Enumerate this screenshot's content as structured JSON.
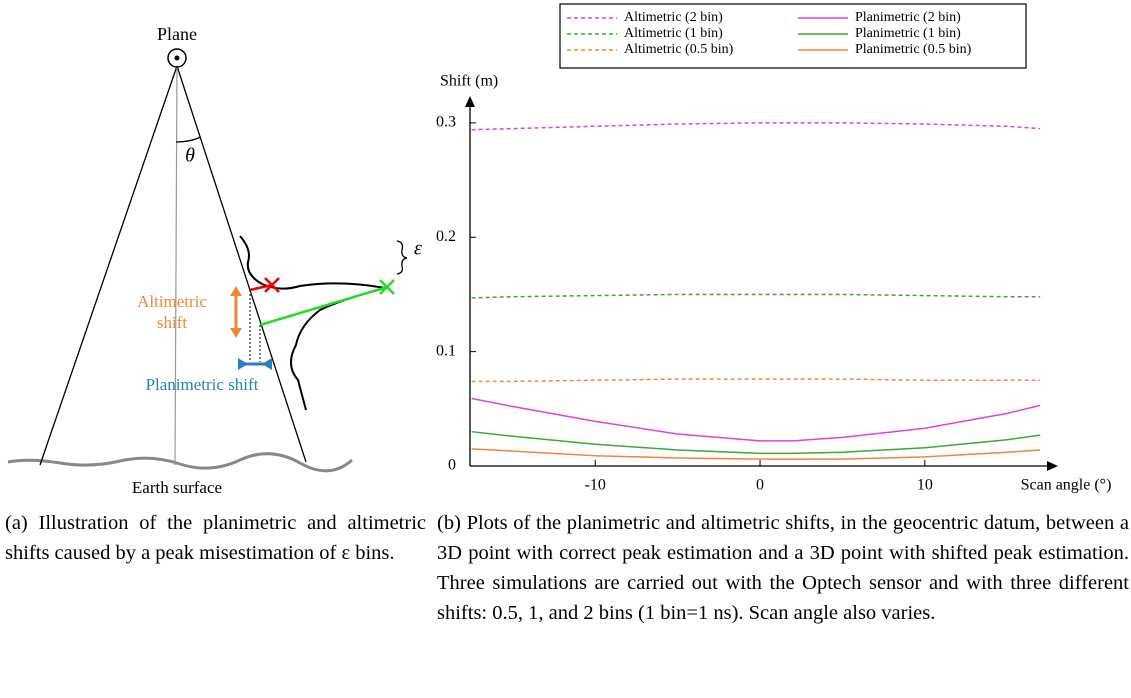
{
  "diagram": {
    "plane": "Plane",
    "theta": "θ",
    "epsilon": "ε",
    "altimetric_shift": [
      "Altimetric",
      "shift"
    ],
    "planimetric_shift": "Planimetric shift",
    "earth_surface": "Earth surface"
  },
  "captions": [
    "(a) Illustration of the planimetric and altimetric shifts caused by a peak misestimation of ε bins.",
    "(b) Plots of the planimetric and altimetric shifts, in the geocentric datum, between a 3D point with correct peak estimation and a 3D point with shifted peak estimation. Three simulations are carried out with the Optech sensor and with three different shifts: 0.5, 1, and 2 bins (1 bin=1 ns). Scan angle also varies."
  ],
  "chart_data": {
    "type": "line",
    "y_label": "Shift (m)",
    "x_label": "Scan angle (°)",
    "x": [
      -17.5,
      -15,
      -10,
      -5,
      0,
      2,
      5,
      10,
      15,
      17
    ],
    "series": [
      {
        "name": "Altimetric (2 bin)",
        "color": "#e23ee2",
        "dashed": true,
        "values": [
          0.294,
          0.295,
          0.297,
          0.299,
          0.3,
          0.3,
          0.3,
          0.299,
          0.297,
          0.295
        ]
      },
      {
        "name": "Altimetric (1 bin)",
        "color": "#3aa83a",
        "dashed": true,
        "values": [
          0.147,
          0.148,
          0.149,
          0.15,
          0.15,
          0.15,
          0.15,
          0.149,
          0.148,
          0.148
        ]
      },
      {
        "name": "Altimetric (0.5 bin)",
        "color": "#f0873c",
        "dashed": true,
        "values": [
          0.074,
          0.074,
          0.075,
          0.076,
          0.076,
          0.076,
          0.076,
          0.075,
          0.075,
          0.075
        ]
      },
      {
        "name": "Planimetric (2 bin)",
        "color": "#e23ee2",
        "dashed": false,
        "values": [
          0.059,
          0.052,
          0.039,
          0.028,
          0.022,
          0.022,
          0.025,
          0.033,
          0.046,
          0.053
        ]
      },
      {
        "name": "Planimetric (1 bin)",
        "color": "#3aa83a",
        "dashed": false,
        "values": [
          0.03,
          0.026,
          0.019,
          0.014,
          0.011,
          0.011,
          0.012,
          0.016,
          0.023,
          0.027
        ]
      },
      {
        "name": "Planimetric (0.5 bin)",
        "color": "#f0873c",
        "dashed": false,
        "values": [
          0.015,
          0.013,
          0.009,
          0.007,
          0.006,
          0.006,
          0.006,
          0.008,
          0.012,
          0.014
        ]
      }
    ],
    "xlim": [
      -17.6,
      17.9
    ],
    "xticks": [
      -10,
      0,
      10
    ],
    "ylim": [
      0,
      0.32
    ],
    "yticks": [
      0,
      0.1,
      0.2,
      0.3
    ],
    "grid": false
  }
}
